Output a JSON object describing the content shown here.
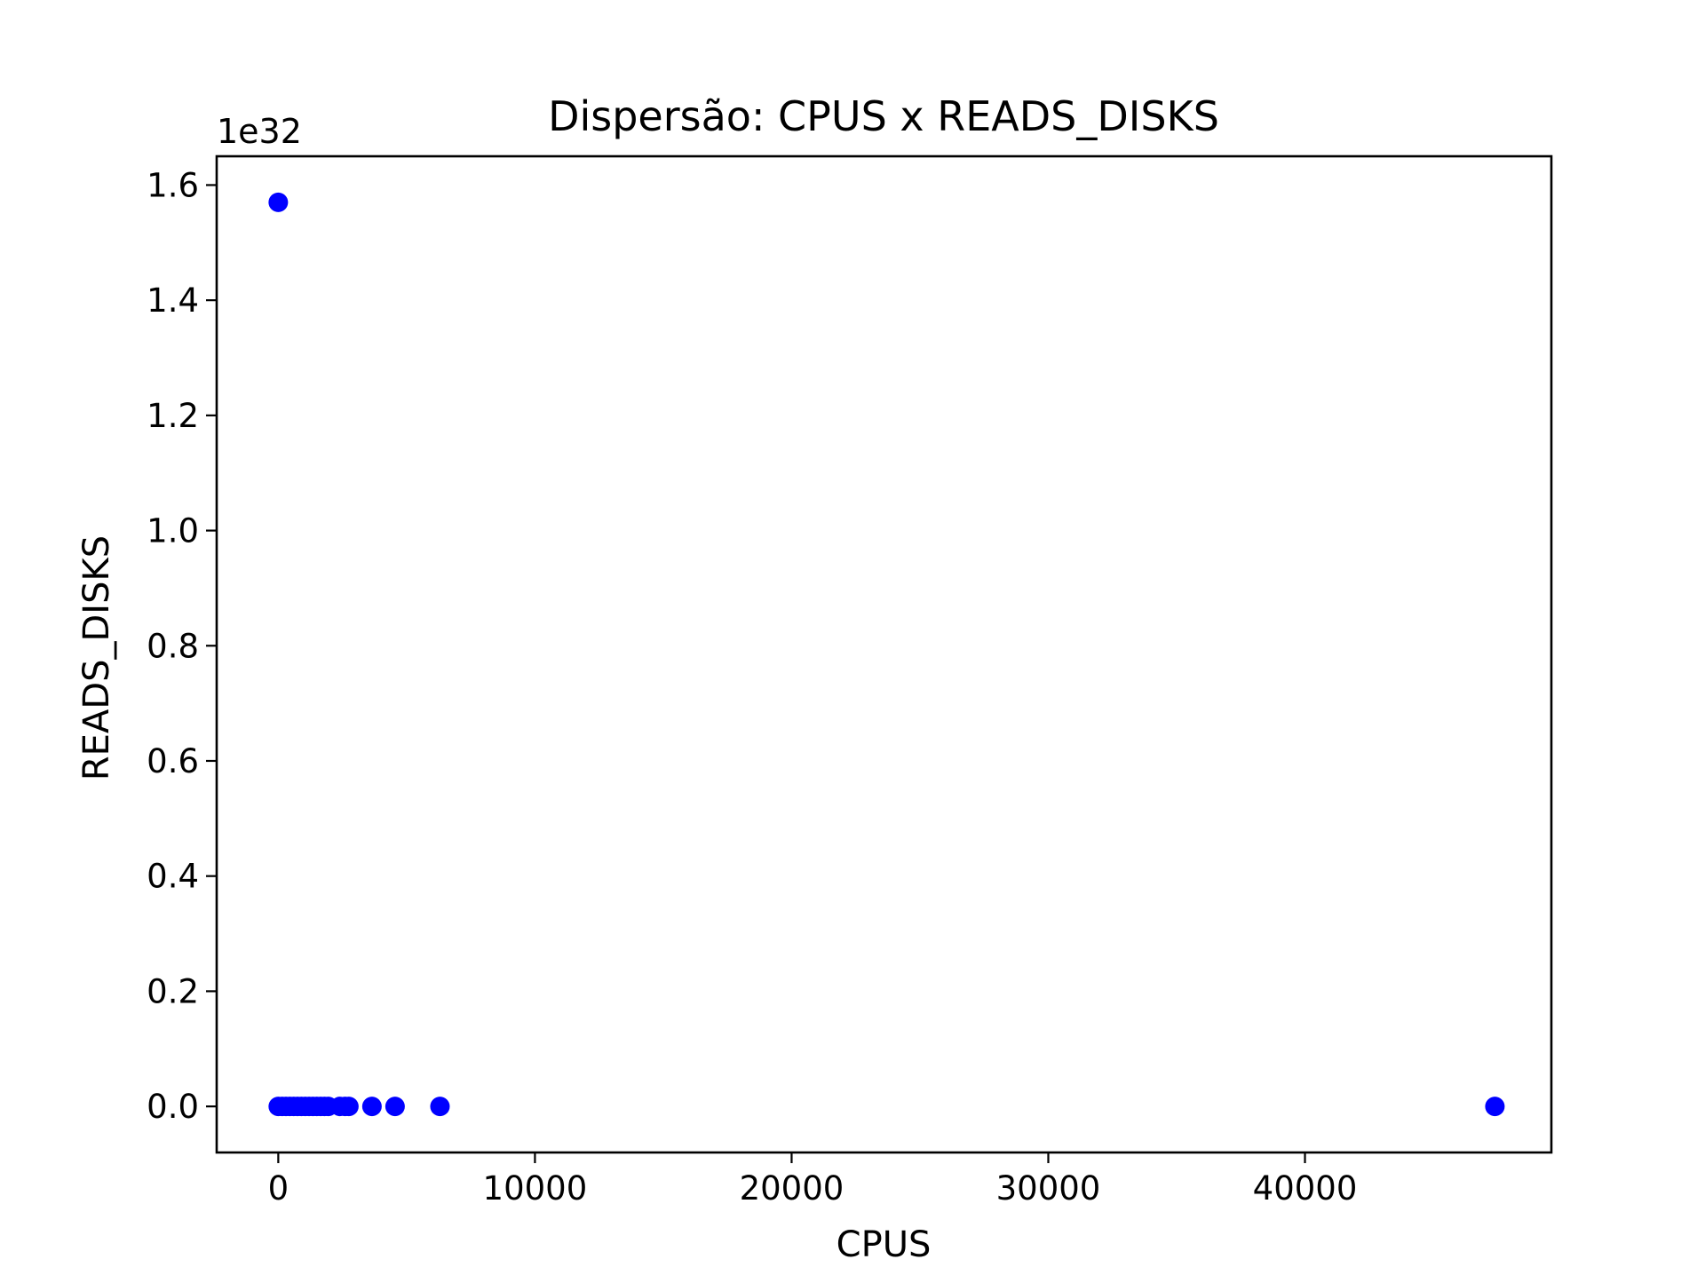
{
  "chart_data": {
    "type": "scatter",
    "title": "Dispersão: CPUS x READS_DISKS",
    "xlabel": "CPUS",
    "ylabel": "READS_DISKS",
    "offset_label": "1e32",
    "xlim": [
      -2400,
      49600
    ],
    "ylim": [
      -0.08,
      1.65
    ],
    "x_ticks": [
      0,
      10000,
      20000,
      30000,
      40000
    ],
    "x_tick_labels": [
      "0",
      "10000",
      "20000",
      "30000",
      "40000"
    ],
    "y_ticks": [
      0.0,
      0.2,
      0.4,
      0.6,
      0.8,
      1.0,
      1.2,
      1.4,
      1.6
    ],
    "y_tick_labels": [
      "0.0",
      "0.2",
      "0.4",
      "0.6",
      "0.8",
      "1.0",
      "1.2",
      "1.4",
      "1.6"
    ],
    "y_scale_factor": 1e+32,
    "grid": false,
    "marker_color": "#0000ff",
    "points": [
      {
        "x": 0,
        "y": 1.57
      },
      {
        "x": 0,
        "y": 0
      },
      {
        "x": 150,
        "y": 0
      },
      {
        "x": 300,
        "y": 0
      },
      {
        "x": 450,
        "y": 0
      },
      {
        "x": 600,
        "y": 0
      },
      {
        "x": 750,
        "y": 0
      },
      {
        "x": 900,
        "y": 0
      },
      {
        "x": 1050,
        "y": 0
      },
      {
        "x": 1200,
        "y": 0
      },
      {
        "x": 1350,
        "y": 0
      },
      {
        "x": 1500,
        "y": 0
      },
      {
        "x": 1650,
        "y": 0
      },
      {
        "x": 1800,
        "y": 0
      },
      {
        "x": 1950,
        "y": 0
      },
      {
        "x": 2400,
        "y": 0
      },
      {
        "x": 2600,
        "y": 0
      },
      {
        "x": 2750,
        "y": 0
      },
      {
        "x": 3650,
        "y": 0
      },
      {
        "x": 4550,
        "y": 0
      },
      {
        "x": 6300,
        "y": 0
      },
      {
        "x": 47400,
        "y": 0
      }
    ]
  }
}
